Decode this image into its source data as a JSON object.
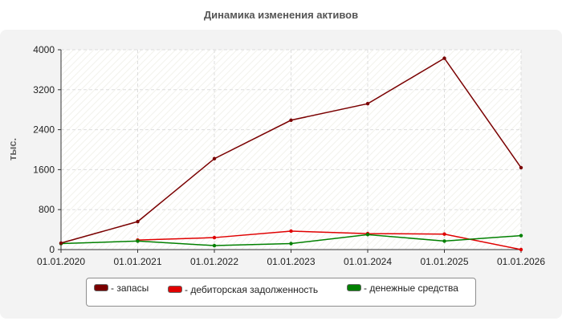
{
  "chart_data": {
    "type": "line",
    "title": "Динамика изменения активов",
    "ylabel": "тыс.",
    "xlabel": "",
    "categories": [
      "01.01.2020",
      "01.01.2021",
      "01.01.2022",
      "01.01.2023",
      "01.01.2024",
      "01.01.2025",
      "01.01.2026"
    ],
    "ylim": [
      0,
      4000
    ],
    "yticks": [
      0,
      800,
      1600,
      2400,
      3200,
      4000
    ],
    "grid": true,
    "legend_position": "bottom",
    "series": [
      {
        "name": "- запасы",
        "color": "#7a0000",
        "values": [
          130,
          560,
          1820,
          2590,
          2920,
          3830,
          1640
        ]
      },
      {
        "name": "- дебиторская задолженность",
        "color": "#e00000",
        "values": [
          null,
          190,
          240,
          370,
          320,
          310,
          0
        ]
      },
      {
        "name": "- денежные средства",
        "color": "#008000",
        "values": [
          120,
          170,
          80,
          120,
          300,
          170,
          280
        ]
      }
    ]
  }
}
